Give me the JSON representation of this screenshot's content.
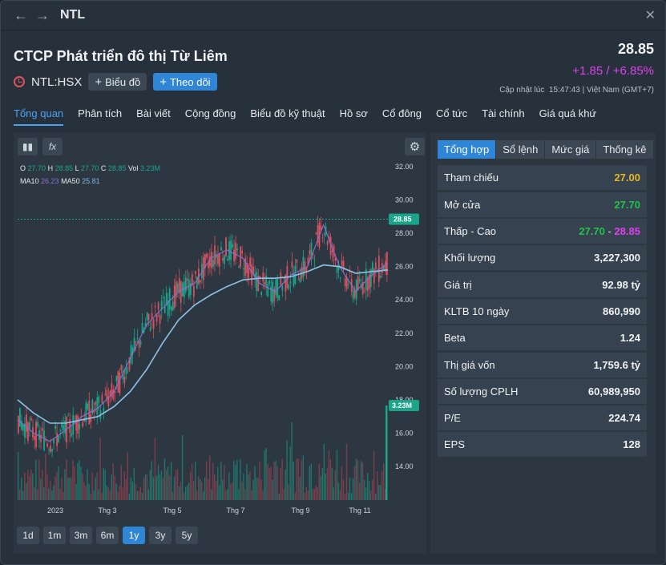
{
  "window": {
    "title": "NTL",
    "back_icon": "←",
    "forward_icon": "→",
    "close_icon": "✕"
  },
  "header": {
    "company": "CTCP Phát triển đô thị Từ Liêm",
    "ticker": "NTL:HSX",
    "price": "28.85",
    "change": "+1.85 / +6.85%",
    "updated_label": "Cập nhật lúc",
    "updated_time": "15:47:43 | Việt Nam (GMT+7)",
    "chart_button": "Biểu đồ",
    "follow_button": "Theo dõi",
    "colors": {
      "up": "#e040f0",
      "accent": "#2f86d6"
    }
  },
  "tabs": [
    "Tổng quan",
    "Phân tích",
    "Bài viết",
    "Cộng đồng",
    "Biểu đồ kỹ thuật",
    "Hồ sơ",
    "Cổ đông",
    "Cổ tức",
    "Tài chính",
    "Giá quá khứ"
  ],
  "chart": {
    "ohlc": {
      "o_label": "O",
      "o": "27.70",
      "h_label": "H",
      "h": "28.85",
      "l_label": "L",
      "l": "27.70",
      "c_label": "C",
      "c": "28.85",
      "vol_label": "Vol",
      "vol": "3.23M"
    },
    "ma": {
      "ma10_label": "MA10",
      "ma10": "26.23",
      "ma50_label": "MA50",
      "ma50": "25.81"
    },
    "price_tag": "28.85",
    "vol_tag": "3.23M",
    "y_ticks": [
      "32.00",
      "30.00",
      "28.00",
      "26.00",
      "24.00",
      "22.00",
      "20.00",
      "18.00",
      "16.00",
      "14.00"
    ],
    "x_ticks": [
      "2023",
      "Thg 3",
      "Thg 5",
      "Thg 7",
      "Thg 9",
      "Thg 11"
    ],
    "ranges": [
      "1d",
      "1m",
      "3m",
      "6m",
      "1y",
      "3y",
      "5y"
    ],
    "active_range": "1y"
  },
  "chart_data": {
    "type": "line",
    "series": [
      {
        "name": "MA10",
        "values": [
          16.8,
          16.0,
          15.5,
          16.2,
          17.0,
          17.5,
          18.5,
          20.5,
          22.5,
          23.5,
          24.5,
          25.0,
          26.5,
          27.0,
          26.5,
          25.0,
          24.5,
          25.5,
          26.0,
          28.5,
          26.0,
          24.5,
          25.5,
          26.2
        ]
      },
      {
        "name": "MA50",
        "values": [
          18.0,
          17.2,
          16.6,
          16.6,
          16.8,
          17.0,
          17.6,
          18.5,
          19.8,
          21.4,
          22.8,
          23.7,
          24.3,
          24.8,
          25.2,
          25.3,
          25.3,
          25.4,
          25.7,
          26.1,
          26.0,
          25.6,
          25.7,
          25.8
        ]
      }
    ],
    "x": [
      "2023",
      "",
      "",
      "Thg 3",
      "",
      "",
      "Thg 5",
      "",
      "",
      "Thg 7",
      "",
      "",
      "",
      "Thg 9",
      "",
      "",
      "",
      "",
      "",
      "",
      "Thg 11",
      "",
      "",
      ""
    ],
    "ylim": [
      12,
      33
    ],
    "last_close": 28.85,
    "last_volume": "3.23M"
  },
  "stats": {
    "tabs": [
      "Tổng hợp",
      "Sổ lệnh",
      "Mức giá",
      "Thống kê"
    ],
    "rows": [
      {
        "label": "Tham chiếu",
        "value": "27.00",
        "color": "#e8b923"
      },
      {
        "label": "Mở cửa",
        "value": "27.70",
        "color": "#1fc34a"
      },
      {
        "label": "Thấp - Cao",
        "low": "27.70",
        "sep": " - ",
        "high": "28.85",
        "low_color": "#1fc34a",
        "high_color": "#e040f0"
      },
      {
        "label": "Khối lượng",
        "value": "3,227,300"
      },
      {
        "label": "Giá trị",
        "value": "92.98 tỷ"
      },
      {
        "label": "KLTB 10 ngày",
        "value": "860,990"
      },
      {
        "label": "Beta",
        "value": "1.24"
      },
      {
        "label": "Thị giá vốn",
        "value": "1,759.6 tỷ"
      },
      {
        "label": "Số lượng CPLH",
        "value": "60,989,950"
      },
      {
        "label": "P/E",
        "value": "224.74"
      },
      {
        "label": "EPS",
        "value": "128"
      }
    ]
  }
}
